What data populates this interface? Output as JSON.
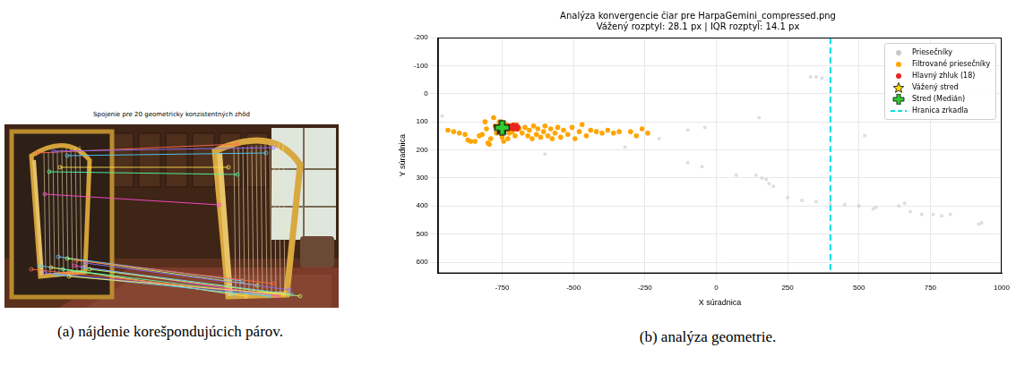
{
  "figure": {
    "panel_a": {
      "title": "Spojenie pre 20 geometricky konzistentných zhôd",
      "caption": "(a) nájdenie korešpondujúcich párov."
    },
    "panel_b": {
      "caption": "(b) analýza geometrie."
    }
  },
  "chart_data": {
    "type": "scatter",
    "title": "Analýza konvergencie čiar pre HarpaGemini_compressed.png",
    "subtitle": "Vážený rozptyl: 28.1 px | IQR rozptyl: 14.1 px",
    "x_label": "X súradnica",
    "y_label": "Y súradnica",
    "xlim": [
      -975,
      1000
    ],
    "xticks": [
      -750,
      -500,
      -250,
      0,
      250,
      500,
      750,
      1000
    ],
    "ylim": [
      640,
      -200
    ],
    "yticks": [
      -200,
      -100,
      0,
      100,
      200,
      300,
      400,
      500,
      600
    ],
    "grid": true,
    "legend": "upper right",
    "series": [
      {
        "name": "Priesečníky",
        "type": "scatter",
        "marker": "circle",
        "color": "#c8c8c8",
        "x": [
          -960,
          -600,
          -320,
          -200,
          -100,
          -40,
          150,
          -100,
          -50,
          70,
          140,
          160,
          175,
          185,
          200,
          330,
          350,
          370,
          250,
          300,
          350,
          400,
          450,
          500,
          550,
          560,
          520,
          640,
          660,
          680,
          720,
          760,
          790,
          820,
          920,
          930
        ],
        "values": [
          80,
          215,
          190,
          160,
          130,
          120,
          85,
          245,
          260,
          290,
          290,
          300,
          305,
          320,
          330,
          -60,
          -60,
          -55,
          370,
          380,
          385,
          390,
          395,
          400,
          410,
          405,
          150,
          400,
          390,
          420,
          430,
          430,
          435,
          430,
          465,
          460
        ]
      },
      {
        "name": "Filtrované priesečníky",
        "type": "scatter",
        "marker": "circle",
        "color": "#ffa500",
        "x": [
          -940,
          -920,
          -900,
          -880,
          -870,
          -860,
          -845,
          -830,
          -820,
          -810,
          -805,
          -800,
          -795,
          -790,
          -780,
          -775,
          -770,
          -760,
          -750,
          -745,
          -740,
          -735,
          -730,
          -725,
          -715,
          -705,
          -700,
          -690,
          -680,
          -670,
          -660,
          -655,
          -645,
          -640,
          -630,
          -625,
          -615,
          -605,
          -600,
          -590,
          -580,
          -575,
          -565,
          -555,
          -545,
          -535,
          -520,
          -505,
          -495,
          -480,
          -470,
          -455,
          -440,
          -420,
          -400,
          -380,
          -360,
          -340,
          -300,
          -280,
          -260,
          -240
        ],
        "values": [
          130,
          135,
          140,
          145,
          165,
          170,
          170,
          150,
          145,
          100,
          125,
          175,
          180,
          160,
          85,
          115,
          140,
          100,
          155,
          170,
          125,
          110,
          160,
          140,
          135,
          150,
          110,
          125,
          140,
          120,
          150,
          130,
          160,
          115,
          145,
          125,
          155,
          135,
          115,
          150,
          125,
          160,
          140,
          120,
          155,
          130,
          145,
          120,
          160,
          135,
          110,
          150,
          130,
          135,
          140,
          130,
          140,
          135,
          135,
          150,
          125,
          140
        ]
      },
      {
        "name": "Hlavný zhluk (18)",
        "type": "scatter",
        "marker": "circle",
        "color": "#e8261e",
        "x": [
          -765,
          -760,
          -755,
          -750,
          -745,
          -740,
          -735,
          -730,
          -725,
          -720,
          -715,
          -712,
          -710,
          -706,
          -703,
          -700,
          -698,
          -695
        ],
        "values": [
          118,
          122,
          116,
          124,
          120,
          118,
          126,
          121,
          115,
          123,
          119,
          112,
          125,
          117,
          121,
          114,
          126,
          119
        ]
      },
      {
        "name": "Vážený stred",
        "type": "scatter",
        "marker": "star",
        "color": "#ffd700",
        "x": [
          -752
        ],
        "values": [
          120
        ]
      },
      {
        "name": "Stred (Medián)",
        "type": "scatter",
        "marker": "plus",
        "color": "#32cd32",
        "x": [
          -750
        ],
        "values": [
          121
        ]
      },
      {
        "name": "Hranica zrkadla",
        "type": "vline",
        "line_style": "dashed",
        "color": "#00e0e0",
        "x": 400
      }
    ]
  }
}
